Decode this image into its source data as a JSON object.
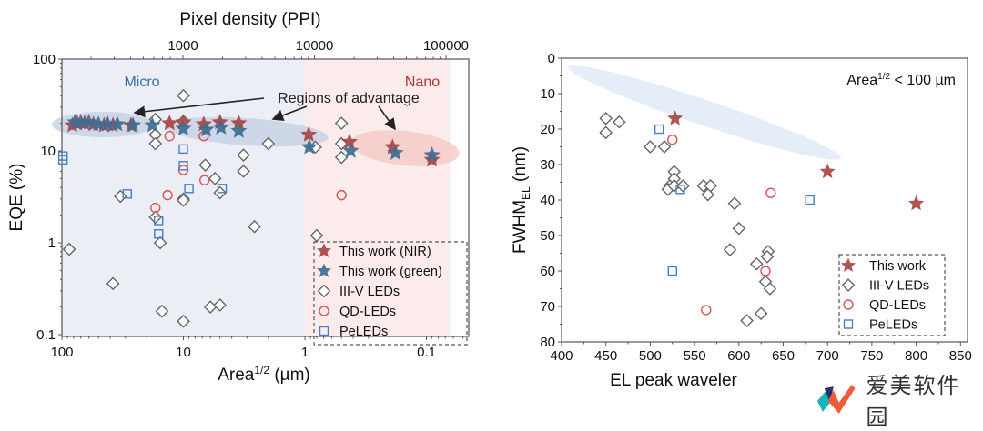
{
  "chart_data": [
    {
      "type": "scatter",
      "id": "left",
      "title": "",
      "xlabel": "Area",
      "xlabel_sup": "1/2",
      "xlabel_unit": " (µm)",
      "ylabel": "EQE (%)",
      "top_xlabel": "Pixel density (PPI)",
      "xscale": "log",
      "yscale": "log",
      "xreversed": true,
      "xlim": [
        100,
        0.064
      ],
      "ylim": [
        0.08,
        100
      ],
      "xticks": [
        {
          "v": 100,
          "label": "100"
        },
        {
          "v": 10,
          "label": "10"
        },
        {
          "v": 1,
          "label": "1"
        },
        {
          "v": 0.1,
          "label": "0.1"
        }
      ],
      "yticks": [
        {
          "v": 100,
          "label": "100"
        },
        {
          "v": 10,
          "label": "10"
        },
        {
          "v": 1,
          "label": "1"
        },
        {
          "v": 0.1,
          "label": "0.1"
        }
      ],
      "top_ticks": [
        {
          "v": 1000,
          "label": "1000"
        },
        {
          "v": 10000,
          "label": "10000"
        },
        {
          "v": 100000,
          "label": "100000"
        }
      ],
      "regions": [
        {
          "name": "Micro",
          "from": 100,
          "to": 1,
          "color": "#eceef6",
          "label_color": "#3a6fa0"
        },
        {
          "name": "Nano",
          "from": 1,
          "to": 0.064,
          "color": "#fbeceb",
          "label_color": "#b2302f"
        }
      ],
      "annotation": "Regions of advantage",
      "legend_position": "bottom-right",
      "series": [
        {
          "name": "This work (NIR)",
          "marker": "star",
          "color": "#a94442",
          "points": [
            [
              82,
              19
            ],
            [
              75,
              20
            ],
            [
              65,
              20
            ],
            [
              55,
              19.5
            ],
            [
              45,
              19
            ],
            [
              38,
              19
            ],
            [
              27,
              19
            ],
            [
              13,
              20
            ],
            [
              10,
              20.5
            ],
            [
              6.8,
              19.5
            ],
            [
              5,
              20.5
            ],
            [
              3.5,
              20
            ],
            [
              0.93,
              15
            ],
            [
              0.43,
              12.5
            ],
            [
              0.19,
              11
            ],
            [
              0.09,
              8
            ]
          ]
        },
        {
          "name": "This work (green)",
          "marker": "star",
          "color": "#3e6d92",
          "points": [
            [
              78,
              20.5
            ],
            [
              70,
              20.5
            ],
            [
              60,
              20.5
            ],
            [
              50,
              19.5
            ],
            [
              42,
              19.5
            ],
            [
              35,
              19.5
            ],
            [
              26,
              19
            ],
            [
              18,
              19
            ],
            [
              10,
              17.5
            ],
            [
              6.5,
              17
            ],
            [
              4.9,
              18
            ],
            [
              3.5,
              16.5
            ],
            [
              0.92,
              11
            ],
            [
              0.42,
              10
            ],
            [
              0.18,
              9.5
            ],
            [
              0.09,
              9
            ]
          ]
        },
        {
          "name": "III-V LEDs",
          "marker": "diamond",
          "color": "#666666",
          "points": [
            [
              10,
              40
            ],
            [
              17,
              22
            ],
            [
              17,
              15
            ],
            [
              17,
              12
            ],
            [
              10,
              21
            ],
            [
              6.6,
              7
            ],
            [
              5.5,
              5
            ],
            [
              5,
              3.5
            ],
            [
              10,
              3
            ],
            [
              10,
              2.9
            ],
            [
              33,
              3.2
            ],
            [
              17,
              1.9
            ],
            [
              15.5,
              1
            ],
            [
              87,
              0.85
            ],
            [
              38,
              0.36
            ],
            [
              15,
              0.18
            ],
            [
              10,
              0.14
            ],
            [
              6,
              0.2
            ],
            [
              5,
              0.21
            ],
            [
              3.2,
              9
            ],
            [
              3.2,
              6
            ],
            [
              2,
              12
            ],
            [
              0.82,
              11
            ],
            [
              0.5,
              20
            ],
            [
              0.5,
              12
            ],
            [
              0.5,
              8.5
            ],
            [
              2.6,
              1.5
            ],
            [
              0.8,
              1.2
            ]
          ]
        },
        {
          "name": "QD-LEDs",
          "marker": "circle",
          "color": "#e05050",
          "points": [
            [
              13,
              14.5
            ],
            [
              6.8,
              14.5
            ],
            [
              10,
              6.2
            ],
            [
              6.7,
              4.8
            ],
            [
              13.5,
              3.3
            ],
            [
              17,
              2.4
            ],
            [
              0.5,
              3.3
            ]
          ]
        },
        {
          "name": "PeLEDs",
          "marker": "square",
          "color": "#4a7fc1",
          "points": [
            [
              98,
              8.8
            ],
            [
              98,
              8
            ],
            [
              29,
              3.4
            ],
            [
              16,
              1.75
            ],
            [
              16,
              1.25
            ],
            [
              10,
              10.5
            ],
            [
              10,
              6.9
            ],
            [
              9,
              3.9
            ],
            [
              4.8,
              3.9
            ]
          ]
        }
      ]
    },
    {
      "type": "scatter",
      "id": "right",
      "title": "",
      "xlabel": "EL peak wavelength (nm)",
      "xlabel_visible": "EL peak waveler",
      "ylabel": "FWHM",
      "ylabel_sub": "EL",
      "ylabel_unit": " (nm)",
      "xlim": [
        400,
        850
      ],
      "ylim": [
        0,
        80
      ],
      "yreversed": true,
      "xticks": [
        400,
        450,
        500,
        550,
        600,
        650,
        700,
        750,
        800,
        850
      ],
      "yticks": [
        0,
        10,
        20,
        30,
        40,
        50,
        60,
        70,
        80
      ],
      "annotation": "Area",
      "annotation_sup": "1/2",
      "annotation_rest": " < 100 µm",
      "legend_position": "bottom-right",
      "series": [
        {
          "name": "This work",
          "marker": "star",
          "color": "#a94442",
          "points": [
            [
              528,
              17
            ],
            [
              700,
              32
            ],
            [
              800,
              41
            ]
          ]
        },
        {
          "name": "III-V LEDs",
          "marker": "diamond",
          "color": "#666666",
          "points": [
            [
              450,
              17
            ],
            [
              465,
              18
            ],
            [
              450,
              21
            ],
            [
              500,
              25
            ],
            [
              516,
              25
            ],
            [
              527,
              32
            ],
            [
              527,
              34
            ],
            [
              522,
              36
            ],
            [
              520,
              37
            ],
            [
              527,
              36
            ],
            [
              537,
              36
            ],
            [
              560,
              36
            ],
            [
              568,
              36
            ],
            [
              565,
              38.5
            ],
            [
              595,
              41
            ],
            [
              600,
              48
            ],
            [
              590,
              54
            ],
            [
              633,
              54.5
            ],
            [
              632,
              56
            ],
            [
              620,
              58
            ],
            [
              630,
              63
            ],
            [
              635,
              65
            ],
            [
              625,
              72
            ],
            [
              609,
              74
            ]
          ]
        },
        {
          "name": "QD-LEDs",
          "marker": "circle",
          "color": "#e05050",
          "points": [
            [
              525,
              23
            ],
            [
              636,
              38
            ],
            [
              630,
              60
            ],
            [
              563,
              71
            ]
          ]
        },
        {
          "name": "PeLEDs",
          "marker": "square",
          "color": "#4a7fc1",
          "points": [
            [
              510,
              20
            ],
            [
              534,
              37
            ],
            [
              680,
              40
            ],
            [
              525,
              60
            ]
          ]
        }
      ]
    }
  ],
  "watermark": {
    "text": "爱美软件园"
  }
}
